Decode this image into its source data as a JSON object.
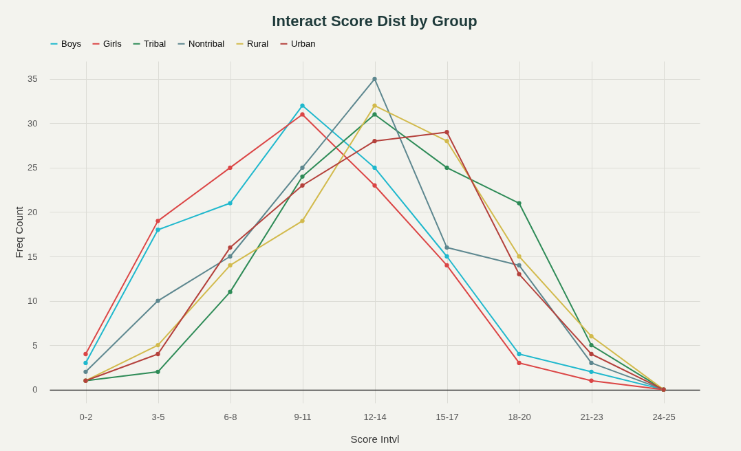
{
  "chart_data": {
    "type": "line",
    "title": "Interact Score Dist by Group",
    "xlabel": "Score Intvl",
    "ylabel": "Freq Count",
    "categories": [
      "0-2",
      "3-5",
      "6-8",
      "9-11",
      "12-14",
      "15-17",
      "18-20",
      "21-23",
      "24-25"
    ],
    "series": [
      {
        "name": "Boys",
        "color": "#1fb8cd",
        "values": [
          3,
          18,
          21,
          32,
          25,
          15,
          4,
          2,
          0
        ]
      },
      {
        "name": "Girls",
        "color": "#db4545",
        "values": [
          4,
          19,
          25,
          31,
          23,
          14,
          3,
          1,
          0
        ]
      },
      {
        "name": "Tribal",
        "color": "#2e8b57",
        "values": [
          1,
          2,
          11,
          24,
          31,
          25,
          21,
          5,
          0
        ]
      },
      {
        "name": "Nontribal",
        "color": "#5d878f",
        "values": [
          2,
          10,
          15,
          25,
          35,
          16,
          14,
          3,
          0
        ]
      },
      {
        "name": "Rural",
        "color": "#d2ba4c",
        "values": [
          1,
          5,
          14,
          19,
          32,
          28,
          15,
          6,
          0
        ]
      },
      {
        "name": "Urban",
        "color": "#b4413c",
        "values": [
          1,
          4,
          16,
          23,
          28,
          29,
          13,
          4,
          0
        ]
      }
    ],
    "ylim": [
      -1.5,
      37
    ],
    "yticks": [
      0,
      5,
      10,
      15,
      20,
      25,
      30,
      35
    ],
    "grid": true,
    "legend": "top",
    "marker": "circle",
    "line_style": "solid"
  }
}
